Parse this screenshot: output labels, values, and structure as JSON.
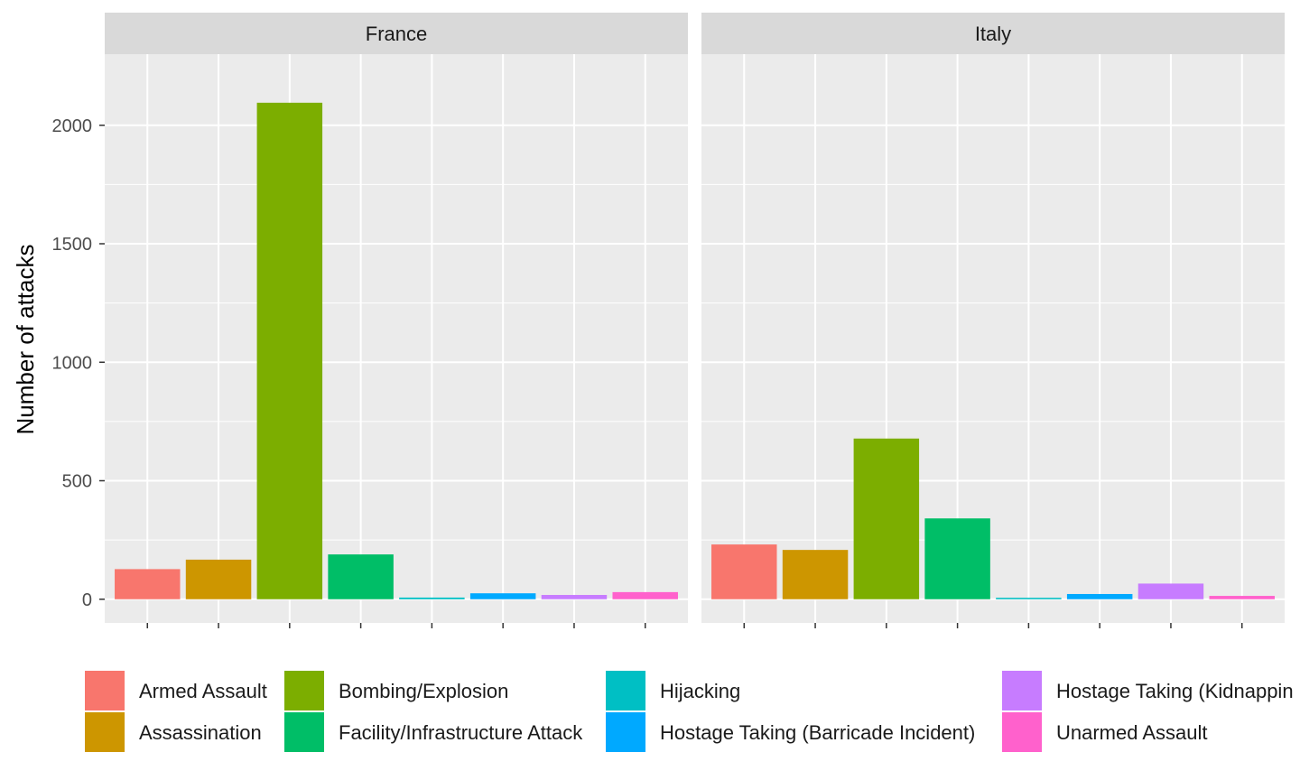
{
  "chart_data": {
    "type": "bar",
    "facets": [
      "France",
      "Italy"
    ],
    "categories": [
      "Armed Assault",
      "Assassination",
      "Bombing/Explosion",
      "Facility/Infrastructure Attack",
      "Hijacking",
      "Hostage Taking (Barricade Incident)",
      "Hostage Taking (Kidnapping)",
      "Unarmed Assault"
    ],
    "legend_labels": [
      "Armed Assault",
      "Assassination",
      "Bombing/Explosion",
      "Facility/Infrastructure Attack",
      "Hijacking",
      "Hostage Taking (Barricade Incident)",
      "Hostage Taking (Kidnappin",
      "Unarmed Assault"
    ],
    "colors": [
      "#F8766D",
      "#CD9600",
      "#7CAE00",
      "#00BE67",
      "#00BFC4",
      "#00A9FF",
      "#C77CFF",
      "#FF61CC"
    ],
    "series": [
      {
        "name": "France",
        "values": [
          127,
          167,
          2095,
          189,
          7,
          25,
          18,
          30
        ]
      },
      {
        "name": "Italy",
        "values": [
          231,
          208,
          678,
          341,
          6,
          22,
          66,
          14
        ]
      }
    ],
    "ylabel": "Number of attacks",
    "xlabel": "",
    "yticks": [
      0,
      500,
      1000,
      1500,
      2000
    ],
    "ylim": [
      -100,
      2300
    ],
    "grid": true,
    "legend_position": "bottom"
  }
}
